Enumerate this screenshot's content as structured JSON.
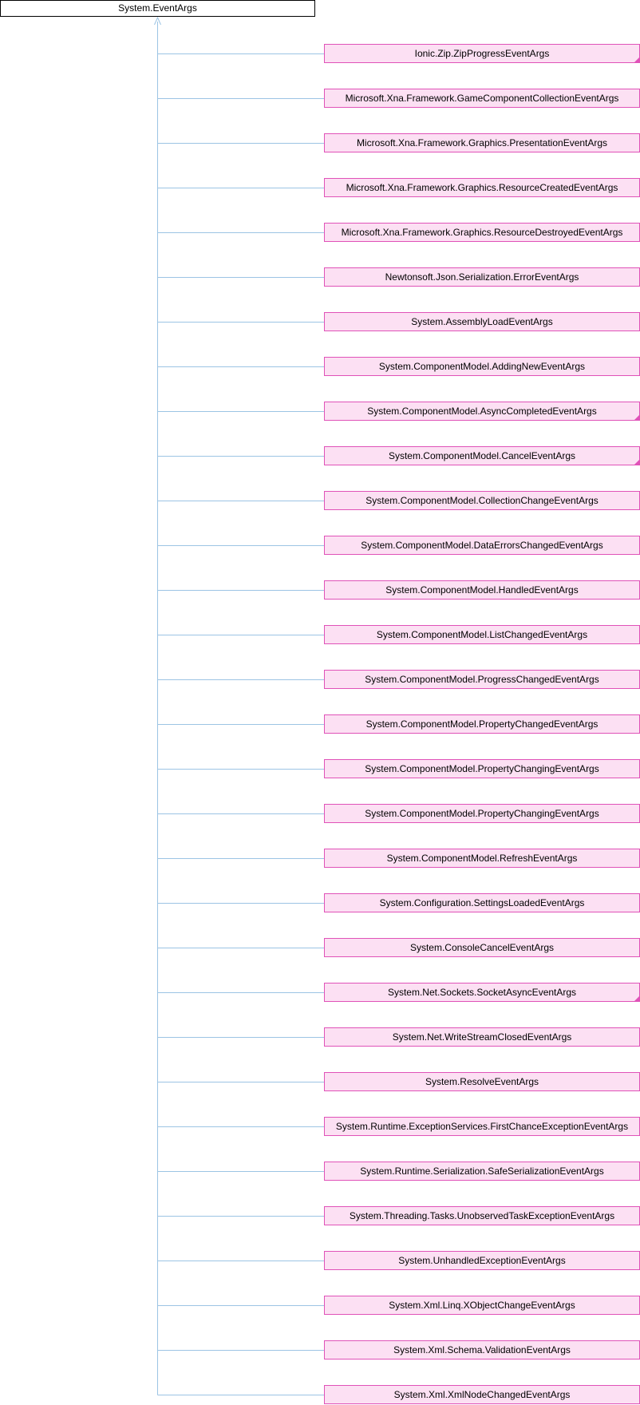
{
  "base_class": "System.EventArgs",
  "derived_classes": [
    {
      "name": "Ionic.Zip.ZipProgressEventArgs",
      "has_more": true
    },
    {
      "name": "Microsoft.Xna.Framework.GameComponentCollectionEventArgs",
      "has_more": false
    },
    {
      "name": "Microsoft.Xna.Framework.Graphics.PresentationEventArgs",
      "has_more": false
    },
    {
      "name": "Microsoft.Xna.Framework.Graphics.ResourceCreatedEventArgs",
      "has_more": false
    },
    {
      "name": "Microsoft.Xna.Framework.Graphics.ResourceDestroyedEventArgs",
      "has_more": false
    },
    {
      "name": "Newtonsoft.Json.Serialization.ErrorEventArgs",
      "has_more": false
    },
    {
      "name": "System.AssemblyLoadEventArgs",
      "has_more": false
    },
    {
      "name": "System.ComponentModel.AddingNewEventArgs",
      "has_more": false
    },
    {
      "name": "System.ComponentModel.AsyncCompletedEventArgs",
      "has_more": true
    },
    {
      "name": "System.ComponentModel.CancelEventArgs",
      "has_more": true
    },
    {
      "name": "System.ComponentModel.CollectionChangeEventArgs",
      "has_more": false
    },
    {
      "name": "System.ComponentModel.DataErrorsChangedEventArgs",
      "has_more": false
    },
    {
      "name": "System.ComponentModel.HandledEventArgs",
      "has_more": false
    },
    {
      "name": "System.ComponentModel.ListChangedEventArgs",
      "has_more": false
    },
    {
      "name": "System.ComponentModel.ProgressChangedEventArgs",
      "has_more": false
    },
    {
      "name": "System.ComponentModel.PropertyChangedEventArgs",
      "has_more": false
    },
    {
      "name": "System.ComponentModel.PropertyChangingEventArgs",
      "has_more": false
    },
    {
      "name": "System.ComponentModel.PropertyChangingEventArgs",
      "has_more": false
    },
    {
      "name": "System.ComponentModel.RefreshEventArgs",
      "has_more": false
    },
    {
      "name": "System.Configuration.SettingsLoadedEventArgs",
      "has_more": false
    },
    {
      "name": "System.ConsoleCancelEventArgs",
      "has_more": false
    },
    {
      "name": "System.Net.Sockets.SocketAsyncEventArgs",
      "has_more": true
    },
    {
      "name": "System.Net.WriteStreamClosedEventArgs",
      "has_more": false
    },
    {
      "name": "System.ResolveEventArgs",
      "has_more": false
    },
    {
      "name": "System.Runtime.ExceptionServices.FirstChanceExceptionEventArgs",
      "has_more": false
    },
    {
      "name": "System.Runtime.Serialization.SafeSerializationEventArgs",
      "has_more": false
    },
    {
      "name": "System.Threading.Tasks.UnobservedTaskExceptionEventArgs",
      "has_more": false
    },
    {
      "name": "System.UnhandledExceptionEventArgs",
      "has_more": false
    },
    {
      "name": "System.Xml.Linq.XObjectChangeEventArgs",
      "has_more": false
    },
    {
      "name": "System.Xml.Schema.ValidationEventArgs",
      "has_more": false
    },
    {
      "name": "System.Xml.XmlNodeChangedEventArgs",
      "has_more": false
    }
  ],
  "colors": {
    "node_fill": "#fce0f3",
    "node_border": "#e052b8",
    "connector": "#9cc4e4",
    "root_border": "#000000"
  }
}
